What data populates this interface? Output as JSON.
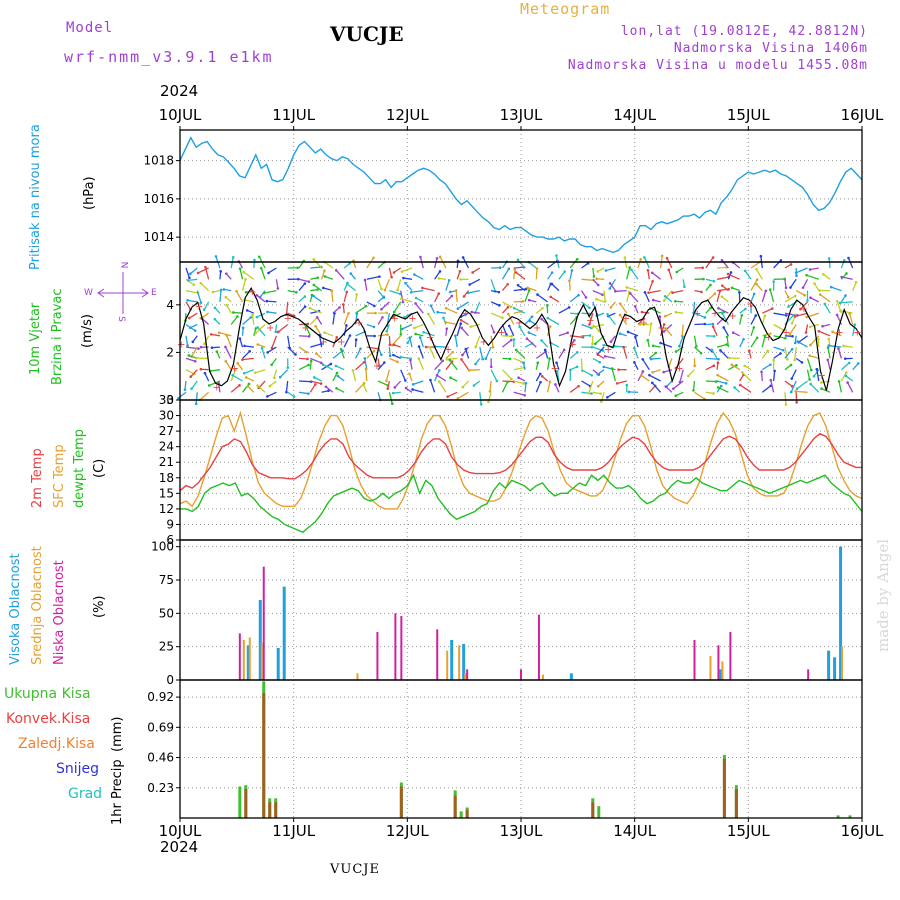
{
  "header": {
    "model_label": "Model",
    "model_name": "wrf-nmm_v3.9.1  e1km",
    "station": "VUCJE",
    "product": "Meteogram",
    "lonlat": "lon,lat (19.0812E, 42.8812N)",
    "altitude": "Nadmorska Visina 1406m",
    "model_altitude": "Nadmorska Visina u modelu 1455.08m",
    "year_top": "2024",
    "year_bottom": "2024",
    "footer_station": "VUCJE",
    "watermark": "made by Angel"
  },
  "colors": {
    "pressure": "#1ea0e0",
    "temp2m": "#e84040",
    "sfc": "#e8a030",
    "dewpt": "#20c020",
    "high_cloud": "#20a0e0",
    "mid_cloud": "#e8a030",
    "low_cloud": "#d020a0",
    "total_precip": "#40c030",
    "conv_precip": "#e84040",
    "frozen": "#f08030",
    "snow": "#3030e0",
    "hail": "#20c0c0"
  },
  "panel_labels": {
    "pressure": [
      "Pritisak na nivou mora",
      "(hPa)"
    ],
    "wind": [
      "10m Vjetar",
      "Brzina i Pravac",
      "(m/s)"
    ],
    "wind_compass": [
      "N",
      "W",
      "E",
      "S"
    ],
    "temp": [
      "2m Temp",
      "SFC Temp",
      "dewpt Temp",
      "(C)"
    ],
    "cloud": [
      "Visoka Oblacnost",
      "Srednja Oblacnost",
      "Niska Oblacnost",
      "(%)"
    ],
    "precip_legend": [
      "Ukupna Kisa",
      "Konvek.Kisa",
      "Zaledj.Kisa",
      "Snijeg",
      "Grad"
    ],
    "precip_axis": [
      "1hr Precip",
      "(mm)"
    ]
  },
  "chart_data": [
    {
      "type": "line",
      "name": "pressure",
      "x_ticks": [
        "10JUL",
        "11JUL",
        "12JUL",
        "13JUL",
        "14JUL",
        "15JUL",
        "16JUL"
      ],
      "ylabel": "(hPa)",
      "y_ticks": [
        1014,
        1016,
        1018
      ],
      "ylim": [
        1012.7,
        1019.6
      ],
      "series": [
        {
          "name": "Pritisak na nivou mora",
          "values": [
            1018.0,
            1018.6,
            1019.2,
            1018.7,
            1018.9,
            1019.0,
            1018.6,
            1018.3,
            1018.2,
            1017.9,
            1017.6,
            1017.2,
            1017.1,
            1017.7,
            1018.3,
            1017.6,
            1017.8,
            1017.0,
            1016.9,
            1017.0,
            1017.6,
            1018.3,
            1018.8,
            1019.0,
            1018.7,
            1018.4,
            1018.6,
            1018.3,
            1018.1,
            1018.0,
            1018.2,
            1018.1,
            1017.8,
            1017.6,
            1017.4,
            1017.1,
            1016.8,
            1016.8,
            1017.0,
            1016.6,
            1016.9,
            1016.9,
            1017.1,
            1017.3,
            1017.5,
            1017.6,
            1017.5,
            1017.3,
            1017.0,
            1016.8,
            1016.4,
            1016.0,
            1015.7,
            1015.9,
            1015.6,
            1015.3,
            1015.0,
            1014.8,
            1014.5,
            1014.4,
            1014.6,
            1014.4,
            1014.5,
            1014.5,
            1014.3,
            1014.1,
            1014.0,
            1014.0,
            1013.9,
            1013.9,
            1014.0,
            1013.8,
            1013.9,
            1013.9,
            1013.6,
            1013.5,
            1013.5,
            1013.3,
            1013.4,
            1013.3,
            1013.2,
            1013.3,
            1013.6,
            1013.8,
            1014.0,
            1014.6,
            1014.6,
            1014.4,
            1014.7,
            1014.8,
            1014.7,
            1014.8,
            1014.9,
            1015.1,
            1015.1,
            1015.2,
            1015.0,
            1015.3,
            1015.4,
            1015.2,
            1015.8,
            1016.1,
            1016.5,
            1017.0,
            1017.2,
            1017.4,
            1017.3,
            1017.4,
            1017.5,
            1017.4,
            1017.5,
            1017.3,
            1017.2,
            1017.0,
            1016.8,
            1016.6,
            1016.2,
            1015.7,
            1015.4,
            1015.5,
            1015.8,
            1016.3,
            1016.9,
            1017.4,
            1017.6,
            1017.3,
            1017.0
          ]
        }
      ]
    },
    {
      "type": "line",
      "name": "wind",
      "ylabel": "(m/s)",
      "y_ticks": [
        0,
        2,
        4
      ],
      "ylim": [
        0,
        5.8
      ],
      "series": [
        {
          "name": "10m Vjetar Brzina",
          "values": [
            2.5,
            3.4,
            3.9,
            4.1,
            3.2,
            1.2,
            0.7,
            0.6,
            0.8,
            1.5,
            3.0,
            4.3,
            4.7,
            4.2,
            3.4,
            3.2,
            3.3,
            3.5,
            3.6,
            3.5,
            3.4,
            3.2,
            3.0,
            2.8,
            2.6,
            2.5,
            2.4,
            2.6,
            2.9,
            3.1,
            3.4,
            3.0,
            2.2,
            1.6,
            2.8,
            3.2,
            3.6,
            3.5,
            3.4,
            3.6,
            3.7,
            3.3,
            2.8,
            2.2,
            1.7,
            2.3,
            2.8,
            3.4,
            3.8,
            3.6,
            3.2,
            2.6,
            2.3,
            2.6,
            3.0,
            3.3,
            3.5,
            3.4,
            3.2,
            3.0,
            3.2,
            3.6,
            3.2,
            1.5,
            0.6,
            1.2,
            2.5,
            3.5,
            4.0,
            3.5,
            3.9,
            2.8,
            2.3,
            2.2,
            3.0,
            3.6,
            3.5,
            3.3,
            3.4,
            3.8,
            3.9,
            3.2,
            1.8,
            0.8,
            1.5,
            2.6,
            3.2,
            3.8,
            4.1,
            4.2,
            3.8,
            3.5,
            3.3,
            3.7,
            4.0,
            4.3,
            4.2,
            3.9,
            3.3,
            2.8,
            2.5,
            2.6,
            3.0,
            3.8,
            4.2,
            4.0,
            3.5,
            3.1,
            1.2,
            0.4,
            1.6,
            3.0,
            3.8,
            3.2,
            3.0,
            2.6
          ]
        }
      ]
    },
    {
      "type": "line",
      "name": "temperature",
      "ylabel": "(C)",
      "y_ticks": [
        6,
        9,
        12,
        15,
        18,
        21,
        24,
        27,
        30,
        33
      ],
      "ylim": [
        6,
        33
      ],
      "series": [
        {
          "name": "2m Temp",
          "values": [
            15.5,
            16.5,
            16.0,
            17.0,
            18.5,
            20.0,
            22.0,
            24.0,
            24.5,
            25.5,
            25.0,
            23.0,
            20.5,
            19.0,
            18.5,
            18.0,
            18.0,
            18.0,
            17.8,
            17.8,
            18.5,
            19.5,
            21.0,
            23.0,
            24.5,
            25.5,
            25.5,
            24.5,
            22.0,
            20.5,
            19.5,
            18.5,
            18.0,
            18.0,
            18.0,
            18.0,
            18.0,
            18.5,
            19.5,
            21.0,
            23.0,
            24.5,
            25.5,
            25.5,
            24.5,
            22.0,
            20.5,
            19.5,
            19.0,
            18.8,
            18.8,
            18.8,
            18.8,
            19.0,
            19.5,
            20.5,
            22.0,
            23.5,
            25.0,
            25.8,
            25.8,
            24.8,
            22.5,
            21.0,
            20.0,
            19.5,
            19.5,
            19.5,
            19.5,
            19.5,
            20.0,
            21.0,
            22.5,
            24.0,
            25.0,
            25.8,
            25.5,
            24.5,
            22.5,
            21.0,
            20.0,
            19.5,
            19.5,
            19.5,
            19.5,
            19.5,
            20.0,
            21.0,
            22.5,
            24.0,
            25.5,
            26.0,
            25.5,
            24.0,
            22.0,
            20.5,
            19.5,
            19.5,
            19.5,
            19.5,
            19.5,
            20.0,
            21.0,
            22.5,
            24.0,
            25.5,
            26.5,
            26.0,
            24.5,
            22.5,
            21.0,
            20.5,
            20.0,
            20.0
          ]
        },
        {
          "name": "SFC Temp",
          "values": [
            13.0,
            13.5,
            12.5,
            14.5,
            18.0,
            22.0,
            26.0,
            29.5,
            30.0,
            27.0,
            30.5,
            26.0,
            21.0,
            17.0,
            15.0,
            14.0,
            13.0,
            12.5,
            12.5,
            12.5,
            14.0,
            17.0,
            21.0,
            25.0,
            28.0,
            30.0,
            30.0,
            28.0,
            24.0,
            19.5,
            16.5,
            14.5,
            13.5,
            12.5,
            12.0,
            12.0,
            12.0,
            14.0,
            17.0,
            21.0,
            25.5,
            28.5,
            30.0,
            30.0,
            28.0,
            24.0,
            19.5,
            16.5,
            15.0,
            14.5,
            14.0,
            13.5,
            13.5,
            14.0,
            16.0,
            19.0,
            22.5,
            26.0,
            29.0,
            30.0,
            29.5,
            27.0,
            23.0,
            19.5,
            17.0,
            16.0,
            15.5,
            15.0,
            14.5,
            14.5,
            15.5,
            18.0,
            21.5,
            25.5,
            28.5,
            30.0,
            30.0,
            28.0,
            24.0,
            19.5,
            16.5,
            15.0,
            14.0,
            13.5,
            13.0,
            14.5,
            17.0,
            21.0,
            25.0,
            28.5,
            30.5,
            29.0,
            26.5,
            22.5,
            18.5,
            16.0,
            15.0,
            14.5,
            14.5,
            14.5,
            15.0,
            17.0,
            20.5,
            24.5,
            28.0,
            30.0,
            30.5,
            28.0,
            24.0,
            20.0,
            17.5,
            15.5,
            14.5,
            14.0
          ]
        },
        {
          "name": "dewpt Temp",
          "values": [
            12.0,
            12.0,
            11.5,
            12.5,
            15.0,
            16.0,
            16.5,
            17.0,
            16.5,
            17.0,
            14.5,
            15.0,
            14.0,
            12.5,
            11.5,
            10.5,
            10.0,
            9.0,
            8.5,
            8.0,
            7.5,
            8.5,
            9.5,
            11.0,
            13.0,
            14.5,
            15.0,
            15.5,
            16.0,
            15.5,
            14.0,
            13.5,
            14.0,
            15.0,
            14.0,
            15.0,
            15.5,
            16.5,
            18.5,
            15.0,
            17.5,
            16.5,
            14.0,
            12.5,
            11.0,
            10.0,
            10.5,
            11.0,
            11.5,
            12.5,
            13.0,
            15.5,
            17.0,
            16.0,
            17.5,
            17.0,
            16.5,
            15.5,
            16.5,
            17.0,
            15.5,
            14.5,
            15.0,
            15.0,
            16.0,
            17.0,
            16.5,
            18.5,
            17.5,
            18.5,
            17.0,
            16.0,
            16.0,
            16.5,
            15.5,
            14.0,
            13.0,
            13.5,
            14.5,
            15.0,
            16.5,
            17.5,
            17.0,
            17.0,
            18.0,
            17.0,
            16.5,
            16.0,
            15.5,
            15.5,
            16.5,
            17.5,
            17.0,
            16.5,
            16.0,
            15.5,
            15.0,
            15.5,
            16.0,
            16.5,
            17.0,
            17.5,
            17.0,
            17.5,
            18.0,
            18.5,
            17.0,
            16.0,
            15.0,
            14.5,
            13.0,
            11.5
          ]
        }
      ]
    },
    {
      "type": "bar",
      "name": "cloud",
      "ylabel": "(%)",
      "y_ticks": [
        0,
        25,
        50,
        75,
        100
      ],
      "ylim": [
        0,
        105
      ],
      "series": [
        {
          "name": "Visoka Oblacnost",
          "bars": [
            [
              11,
              26
            ],
            [
              13,
              60
            ],
            [
              16,
              24
            ],
            [
              17,
              70
            ],
            [
              45,
              30
            ],
            [
              47,
              27
            ],
            [
              65,
              5
            ],
            [
              90,
              8
            ],
            [
              110,
              100
            ],
            [
              109,
              17
            ],
            [
              108,
              22
            ]
          ]
        },
        {
          "name": "Srednja Oblacnost",
          "bars": [
            [
              11,
              30
            ],
            [
              12,
              32
            ],
            [
              14,
              28
            ],
            [
              30,
              5
            ],
            [
              45,
              22
            ],
            [
              47,
              26
            ],
            [
              48,
              5
            ],
            [
              61,
              4
            ],
            [
              89,
              18
            ],
            [
              91,
              14
            ],
            [
              111,
              25
            ]
          ]
        },
        {
          "name": "Niska Oblacnost",
          "bars": [
            [
              10,
              35
            ],
            [
              14,
              85
            ],
            [
              33,
              36
            ],
            [
              36,
              50
            ],
            [
              37,
              48
            ],
            [
              43,
              38
            ],
            [
              48,
              8
            ],
            [
              57,
              8
            ],
            [
              60,
              49
            ],
            [
              86,
              30
            ],
            [
              90,
              26
            ],
            [
              92,
              36
            ],
            [
              105,
              8
            ]
          ]
        }
      ]
    },
    {
      "type": "bar",
      "name": "precip",
      "ylabel": "1hr Precip (mm)",
      "y_ticks": [
        0.23,
        0.46,
        0.69,
        0.92
      ],
      "ylim": [
        0,
        1.05
      ],
      "series": [
        {
          "name": "Ukupna Kisa",
          "bars": [
            [
              10,
              0.24
            ],
            [
              11,
              0.25
            ],
            [
              14,
              1.04
            ],
            [
              15,
              0.15
            ],
            [
              16,
              0.15
            ],
            [
              37,
              0.27
            ],
            [
              46,
              0.21
            ],
            [
              47,
              0.05
            ],
            [
              48,
              0.08
            ],
            [
              69,
              0.15
            ],
            [
              70,
              0.09
            ],
            [
              91,
              0.48
            ],
            [
              93,
              0.25
            ],
            [
              110,
              0.02
            ],
            [
              112,
              0.02
            ]
          ]
        },
        {
          "name": "Konvek.Kisa",
          "bars": [
            [
              11,
              0.22
            ],
            [
              14,
              0.95
            ],
            [
              15,
              0.12
            ],
            [
              16,
              0.12
            ],
            [
              37,
              0.24
            ],
            [
              46,
              0.17
            ],
            [
              48,
              0.06
            ],
            [
              69,
              0.12
            ],
            [
              91,
              0.45
            ],
            [
              93,
              0.22
            ]
          ]
        }
      ]
    }
  ]
}
